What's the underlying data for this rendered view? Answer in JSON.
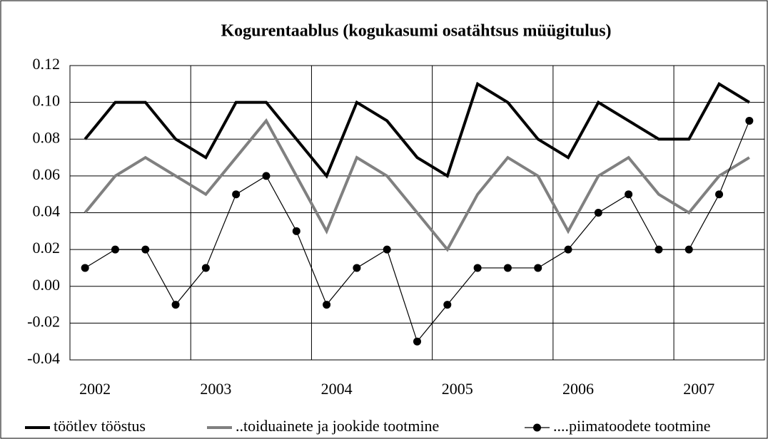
{
  "chart_data": {
    "type": "line",
    "title": "Kogurentaablus (kogukasumi osatähtsus müügitulus)",
    "categories": [
      "2002",
      null,
      null,
      null,
      "2003",
      null,
      null,
      null,
      "2004",
      null,
      null,
      null,
      "2005",
      null,
      null,
      null,
      "2006",
      null,
      null,
      null,
      "2007",
      null,
      null
    ],
    "series": [
      {
        "name": "töötlev tööstus",
        "color": "#000000",
        "values": [
          0.08,
          0.1,
          0.1,
          0.08,
          0.07,
          0.1,
          0.1,
          0.08,
          0.06,
          0.1,
          0.09,
          0.07,
          0.06,
          0.11,
          0.1,
          0.08,
          0.07,
          0.1,
          0.09,
          0.08,
          0.08,
          0.11,
          0.1
        ]
      },
      {
        "name": "..toiduainete ja jookide tootmine",
        "color": "#808080",
        "values": [
          0.04,
          0.06,
          0.07,
          0.06,
          0.05,
          0.07,
          0.09,
          0.06,
          0.03,
          0.07,
          0.06,
          0.04,
          0.02,
          0.05,
          0.07,
          0.06,
          0.03,
          0.06,
          0.07,
          0.05,
          0.04,
          0.06,
          0.07
        ]
      },
      {
        "name": "....piimatoodete tootmine",
        "color": "#000000",
        "marker": "circle",
        "values": [
          0.01,
          0.02,
          0.02,
          -0.01,
          0.01,
          0.05,
          0.06,
          0.03,
          -0.01,
          0.01,
          0.02,
          -0.03,
          -0.01,
          0.01,
          0.01,
          0.01,
          0.02,
          0.04,
          0.05,
          0.02,
          0.02,
          0.05,
          0.09
        ]
      }
    ],
    "ylim": [
      -0.04,
      0.12
    ],
    "yticks": [
      0.12,
      {
        "value": 0.1,
        "label": "0.10"
      },
      0.08,
      0.06,
      0.04,
      0.02,
      {
        "value": 0,
        "label": "0.00"
      },
      -0.02,
      -0.04
    ],
    "grid": true,
    "legend": "bottom"
  }
}
